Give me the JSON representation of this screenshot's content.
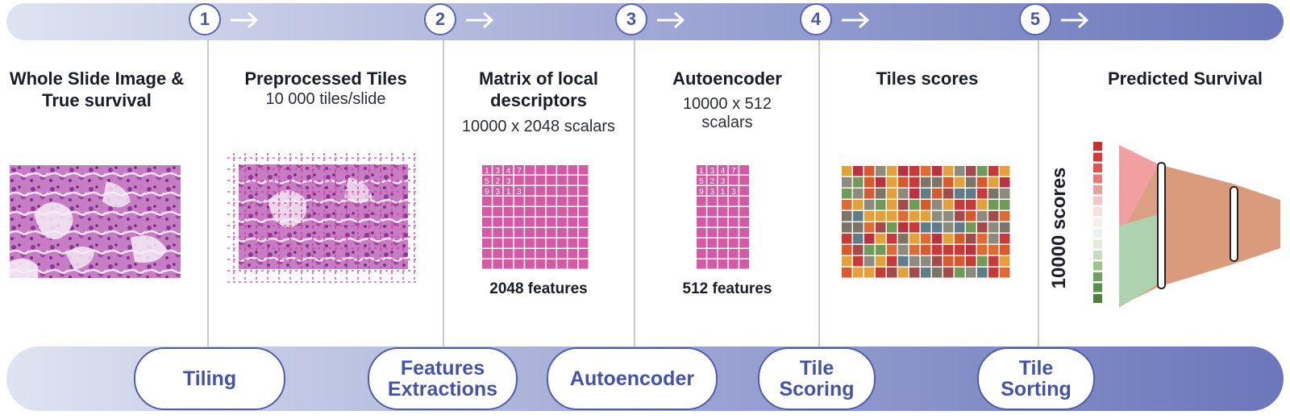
{
  "steps": [
    "1",
    "2",
    "3",
    "4",
    "5"
  ],
  "columns": {
    "wsi": {
      "title": "Whole Slide Image & True survival"
    },
    "tiles": {
      "title": "Preprocessed Tiles",
      "subtitle": "10 000 tiles/slide"
    },
    "matrix": {
      "title": "Matrix of local descriptors",
      "subtitle": "10000 x 2048 scalars",
      "features": "2048 features",
      "cells": [
        "1",
        "3",
        "4",
        "7",
        "5",
        "2",
        "3",
        "9",
        "3",
        "1",
        "3"
      ]
    },
    "autoenc": {
      "title": "Autoencoder",
      "subtitle": "10000 x 512 scalars",
      "features": "512 features",
      "cells": [
        "1",
        "3",
        "4",
        "7",
        "5",
        "2",
        "3",
        "9",
        "3",
        "1",
        "3"
      ]
    },
    "scores": {
      "title": "Tiles scores"
    },
    "survival": {
      "title": "Predicted Survival",
      "axis_label": "10000 scores"
    }
  },
  "stages": [
    "Tiling",
    "Features Extractions",
    "Autoencoder",
    "Tile Scoring",
    "Tile Sorting"
  ],
  "colors": {
    "accent": "#4f5ca8",
    "pink": "#d45aa6",
    "red_funnel": "#f2a0a4",
    "green_funnel": "#a8d7b4",
    "brown_funnel": "#d99b7c"
  }
}
